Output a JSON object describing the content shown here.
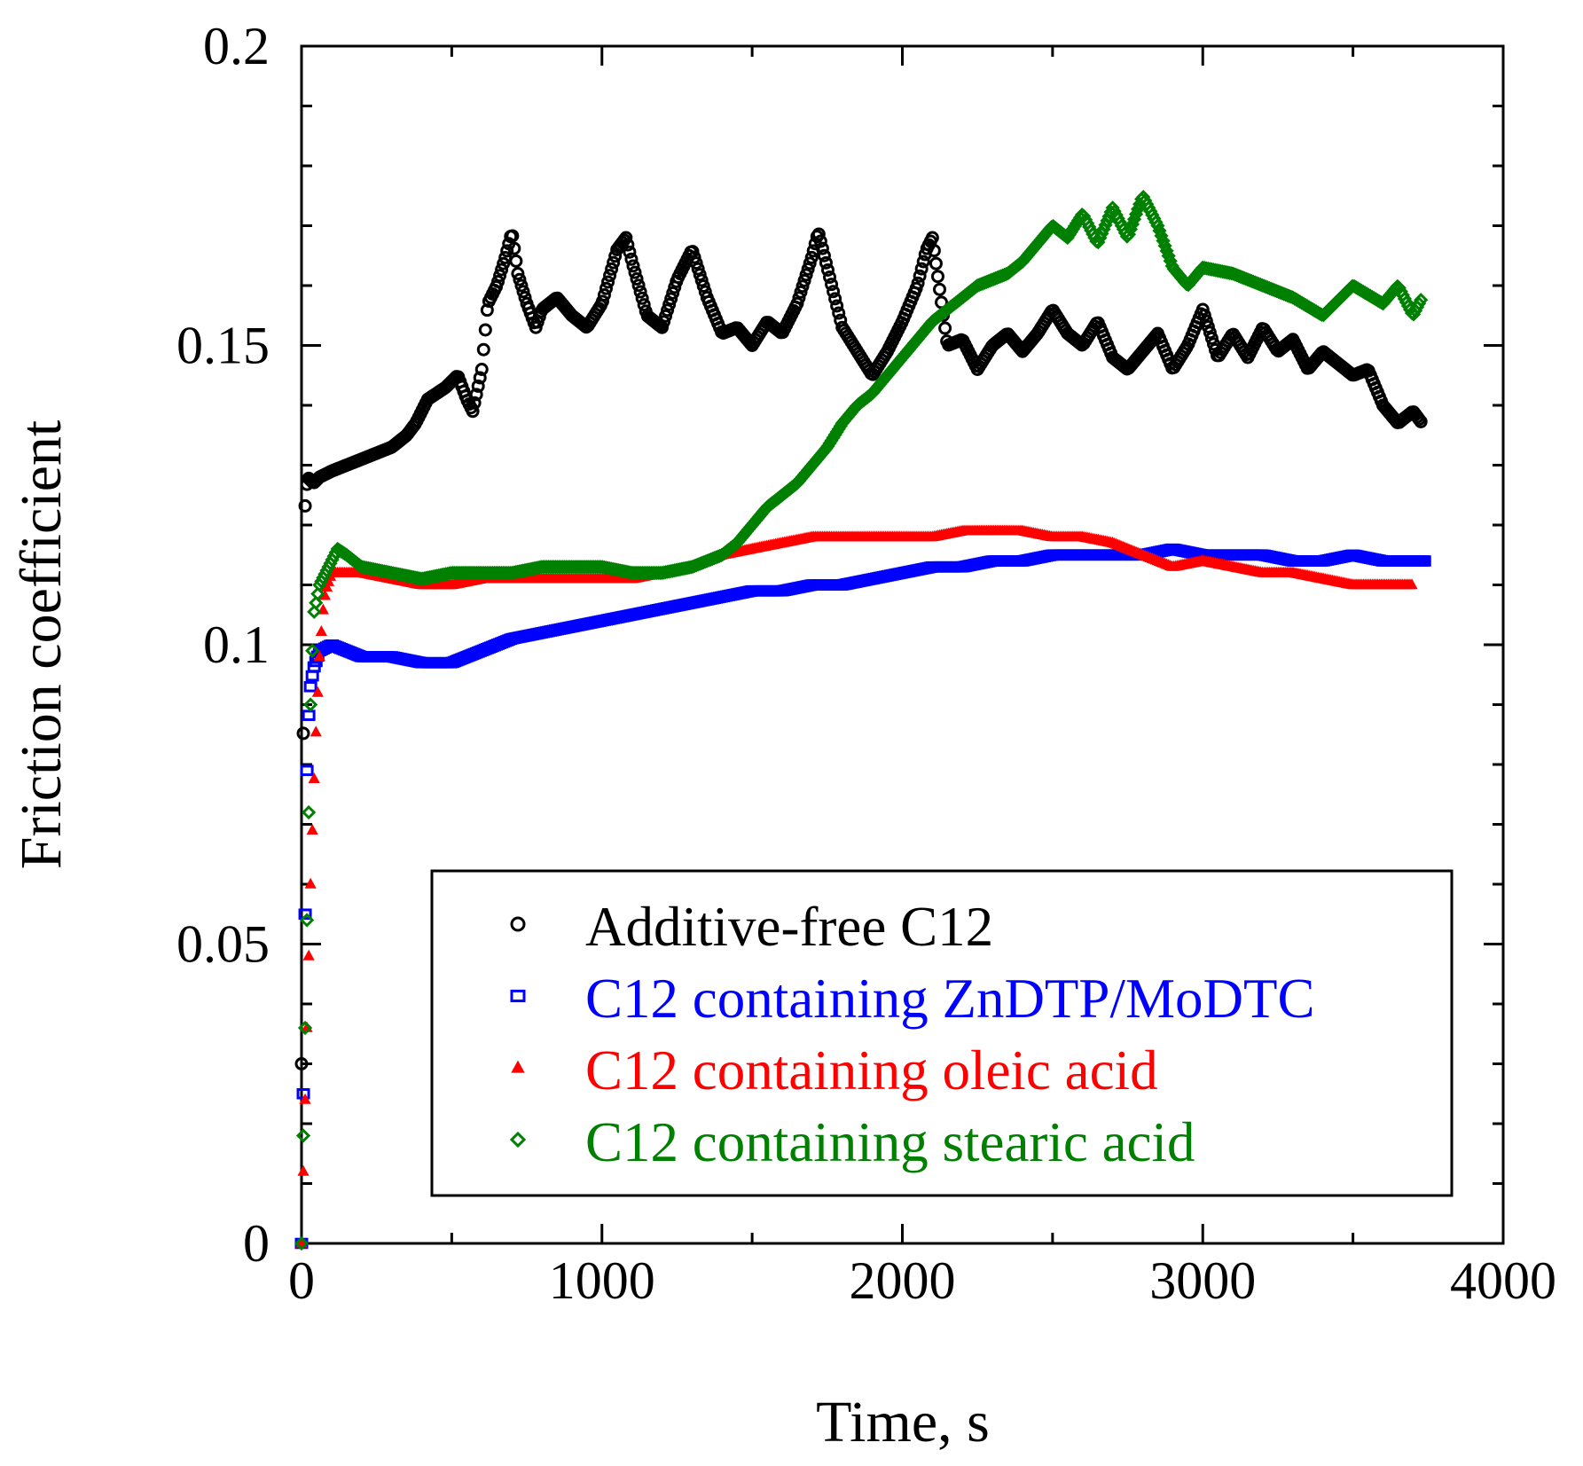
{
  "chart_data": {
    "type": "scatter",
    "title": "",
    "xlabel": "Time, s",
    "ylabel": "Friction coefficient",
    "xlim": [
      0,
      4000
    ],
    "ylim": [
      0,
      0.2
    ],
    "xticks": [
      "0",
      "1000",
      "2000",
      "3000",
      "4000"
    ],
    "yticks": [
      "0",
      "0.05",
      "0.1",
      "0.15",
      "0.2"
    ],
    "grid": false,
    "legend_position": "lower-right",
    "series": [
      {
        "name": "Additive-free C12",
        "color": "#000000",
        "marker": "open-circle",
        "x": [
          0,
          10,
          20,
          40,
          60,
          100,
          150,
          200,
          250,
          300,
          350,
          380,
          400,
          420,
          450,
          480,
          500,
          520,
          550,
          570,
          600,
          620,
          650,
          680,
          700,
          720,
          750,
          780,
          800,
          850,
          900,
          950,
          1000,
          1050,
          1080,
          1100,
          1150,
          1200,
          1250,
          1300,
          1350,
          1400,
          1450,
          1500,
          1550,
          1600,
          1650,
          1700,
          1720,
          1750,
          1800,
          1850,
          1900,
          1950,
          2000,
          2050,
          2080,
          2100,
          2150,
          2200,
          2250,
          2300,
          2350,
          2400,
          2450,
          2500,
          2550,
          2600,
          2650,
          2700,
          2750,
          2800,
          2850,
          2900,
          2950,
          3000,
          3050,
          3100,
          3150,
          3200,
          3250,
          3300,
          3350,
          3400,
          3450,
          3500,
          3550,
          3600,
          3650,
          3700,
          3730
        ],
        "y": [
          0.03,
          0.122,
          0.128,
          0.127,
          0.128,
          0.129,
          0.13,
          0.131,
          0.132,
          0.133,
          0.135,
          0.137,
          0.139,
          0.141,
          0.142,
          0.143,
          0.144,
          0.145,
          0.141,
          0.139,
          0.146,
          0.157,
          0.16,
          0.165,
          0.169,
          0.162,
          0.157,
          0.153,
          0.156,
          0.158,
          0.155,
          0.153,
          0.157,
          0.166,
          0.168,
          0.164,
          0.155,
          0.153,
          0.161,
          0.166,
          0.158,
          0.152,
          0.153,
          0.15,
          0.154,
          0.152,
          0.157,
          0.165,
          0.169,
          0.163,
          0.153,
          0.149,
          0.145,
          0.149,
          0.154,
          0.16,
          0.166,
          0.168,
          0.15,
          0.151,
          0.146,
          0.15,
          0.152,
          0.149,
          0.152,
          0.156,
          0.152,
          0.15,
          0.154,
          0.148,
          0.146,
          0.149,
          0.152,
          0.146,
          0.15,
          0.156,
          0.148,
          0.152,
          0.148,
          0.153,
          0.149,
          0.151,
          0.146,
          0.149,
          0.147,
          0.145,
          0.146,
          0.14,
          0.137,
          0.139,
          0.137
        ]
      },
      {
        "name": "C12 containing ZnDTP/MoDTC",
        "color": "#0000ff",
        "marker": "open-square",
        "x": [
          0,
          5,
          10,
          15,
          20,
          30,
          40,
          60,
          100,
          150,
          200,
          300,
          400,
          500,
          600,
          700,
          800,
          900,
          1000,
          1100,
          1200,
          1300,
          1400,
          1500,
          1600,
          1700,
          1800,
          1900,
          2000,
          2100,
          2200,
          2300,
          2400,
          2500,
          2600,
          2700,
          2800,
          2900,
          3000,
          3100,
          3200,
          3300,
          3400,
          3500,
          3600,
          3700,
          3740
        ],
        "y": [
          0.0,
          0.02,
          0.045,
          0.07,
          0.085,
          0.093,
          0.096,
          0.099,
          0.1,
          0.099,
          0.098,
          0.098,
          0.097,
          0.097,
          0.099,
          0.101,
          0.102,
          0.103,
          0.104,
          0.105,
          0.106,
          0.107,
          0.108,
          0.109,
          0.109,
          0.11,
          0.11,
          0.111,
          0.112,
          0.113,
          0.113,
          0.114,
          0.114,
          0.115,
          0.115,
          0.115,
          0.115,
          0.116,
          0.115,
          0.115,
          0.115,
          0.114,
          0.114,
          0.115,
          0.114,
          0.114,
          0.114
        ]
      },
      {
        "name": "C12 containing oleic acid",
        "color": "#ff0000",
        "marker": "filled-triangle",
        "x": [
          0,
          10,
          20,
          30,
          40,
          50,
          60,
          70,
          80,
          100,
          150,
          200,
          300,
          400,
          500,
          600,
          700,
          800,
          900,
          1000,
          1100,
          1200,
          1300,
          1400,
          1500,
          1600,
          1700,
          1800,
          1900,
          2000,
          2100,
          2200,
          2300,
          2400,
          2500,
          2600,
          2700,
          2800,
          2900,
          3000,
          3100,
          3200,
          3300,
          3400,
          3500,
          3600,
          3700
        ],
        "y": [
          0.0,
          0.02,
          0.04,
          0.06,
          0.075,
          0.088,
          0.098,
          0.105,
          0.109,
          0.112,
          0.112,
          0.112,
          0.111,
          0.11,
          0.11,
          0.111,
          0.111,
          0.111,
          0.111,
          0.111,
          0.111,
          0.112,
          0.113,
          0.115,
          0.116,
          0.117,
          0.118,
          0.118,
          0.118,
          0.118,
          0.118,
          0.119,
          0.119,
          0.119,
          0.118,
          0.118,
          0.117,
          0.115,
          0.113,
          0.114,
          0.113,
          0.112,
          0.112,
          0.111,
          0.11,
          0.11,
          0.11
        ]
      },
      {
        "name": "C12 containing stearic acid",
        "color": "#008000",
        "marker": "open-diamond",
        "x": [
          0,
          10,
          20,
          30,
          40,
          60,
          80,
          100,
          120,
          150,
          200,
          300,
          400,
          500,
          600,
          700,
          800,
          900,
          1000,
          1100,
          1200,
          1300,
          1400,
          1450,
          1500,
          1550,
          1600,
          1650,
          1700,
          1750,
          1800,
          1850,
          1900,
          1950,
          2000,
          2050,
          2100,
          2150,
          2200,
          2250,
          2300,
          2350,
          2400,
          2450,
          2500,
          2550,
          2600,
          2650,
          2700,
          2750,
          2800,
          2850,
          2900,
          2950,
          3000,
          3100,
          3200,
          3300,
          3400,
          3500,
          3600,
          3650,
          3700,
          3730
        ],
        "y": [
          0.0,
          0.03,
          0.06,
          0.09,
          0.105,
          0.11,
          0.112,
          0.114,
          0.116,
          0.115,
          0.113,
          0.112,
          0.111,
          0.112,
          0.112,
          0.112,
          0.113,
          0.113,
          0.113,
          0.112,
          0.112,
          0.113,
          0.115,
          0.117,
          0.12,
          0.123,
          0.125,
          0.127,
          0.13,
          0.133,
          0.137,
          0.14,
          0.142,
          0.145,
          0.148,
          0.151,
          0.154,
          0.156,
          0.158,
          0.16,
          0.161,
          0.162,
          0.164,
          0.167,
          0.17,
          0.168,
          0.172,
          0.167,
          0.173,
          0.168,
          0.175,
          0.17,
          0.163,
          0.16,
          0.163,
          0.162,
          0.16,
          0.158,
          0.155,
          0.16,
          0.157,
          0.16,
          0.155,
          0.158
        ]
      }
    ]
  }
}
